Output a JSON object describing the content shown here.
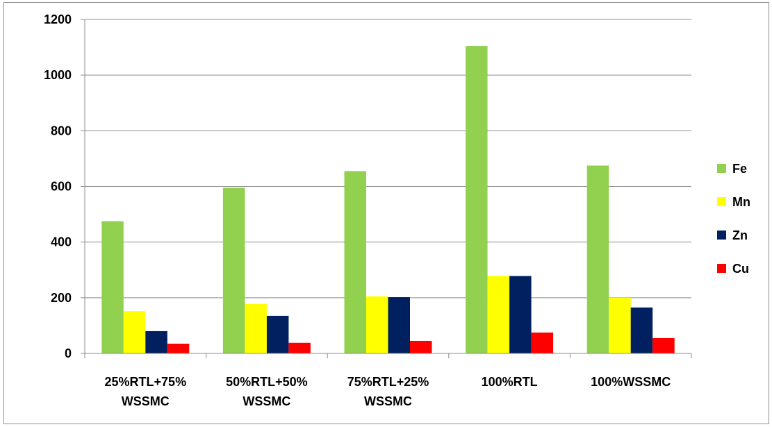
{
  "chart_data": {
    "type": "bar",
    "categories": [
      [
        "25%RTL+75%",
        "WSSMC"
      ],
      [
        "50%RTL+50%",
        "WSSMC"
      ],
      [
        "75%RTL+25%",
        "WSSMC"
      ],
      [
        "100%RTL"
      ],
      [
        "100%WSSMC"
      ]
    ],
    "series": [
      {
        "name": "Fe",
        "color": "#92d050",
        "values": [
          475,
          595,
          655,
          1105,
          675
        ]
      },
      {
        "name": "Mn",
        "color": "#ffff00",
        "values": [
          152,
          178,
          205,
          278,
          200
        ]
      },
      {
        "name": "Zn",
        "color": "#002060",
        "values": [
          80,
          135,
          202,
          278,
          165
        ]
      },
      {
        "name": "Cu",
        "color": "#ff0000",
        "values": [
          35,
          38,
          45,
          75,
          55
        ]
      }
    ],
    "yticks": [
      "0",
      "200",
      "400",
      "600",
      "800",
      "1000",
      "1200"
    ],
    "ylim": [
      0,
      1200
    ],
    "grid": true,
    "legend_position": "right",
    "title": "",
    "xlabel": "",
    "ylabel": ""
  }
}
